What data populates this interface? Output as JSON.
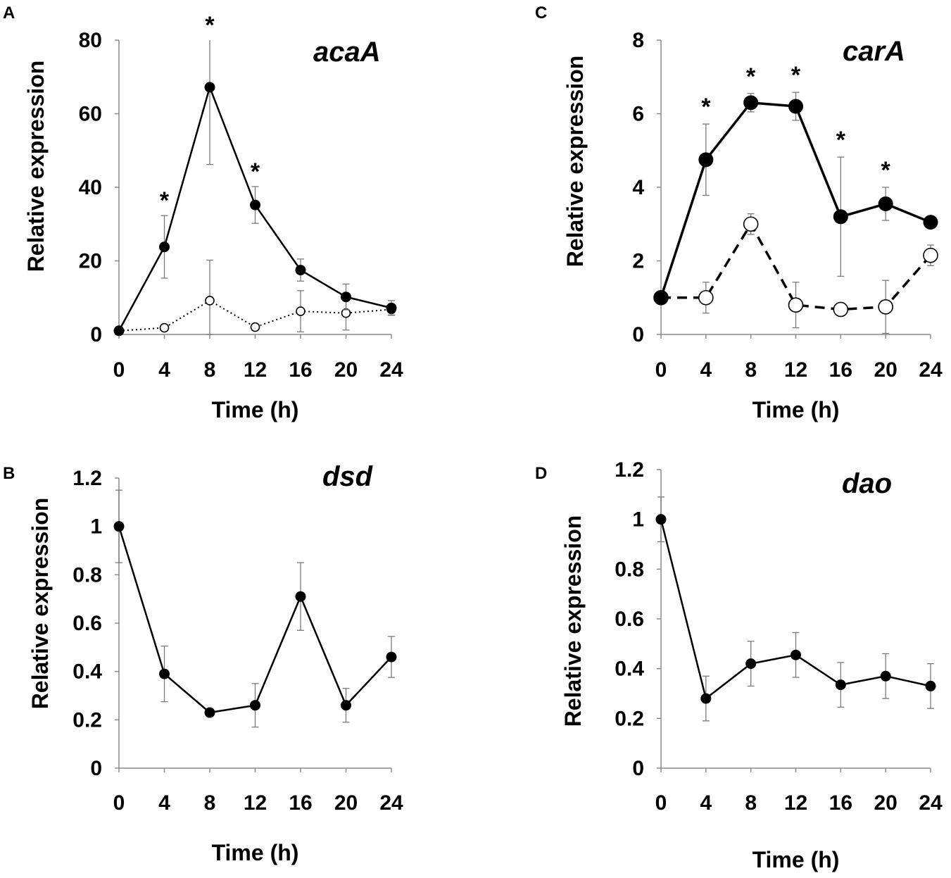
{
  "chart_data": [
    {
      "panel": "A",
      "type": "line",
      "title": "acaA",
      "xlabel": "Time (h)",
      "ylabel": "Relative expression",
      "x": [
        0,
        4,
        8,
        12,
        16,
        20,
        24
      ],
      "ylim": [
        0,
        80
      ],
      "yticks": [
        0,
        20,
        40,
        60,
        80
      ],
      "ytick_labels": [
        "0",
        "20",
        "40",
        "60",
        "80"
      ],
      "xtick_labels": [
        "0",
        "4",
        "8",
        "12",
        "16",
        "20",
        "24"
      ],
      "series": [
        {
          "name": "filled",
          "marker": "filled",
          "line": "solid",
          "values": [
            1,
            23.8,
            67.2,
            35.2,
            17.5,
            10.2,
            7.2
          ],
          "errors": [
            0,
            8.5,
            21,
            5,
            3,
            3.5,
            2
          ]
        },
        {
          "name": "open",
          "marker": "open",
          "line": "dotted",
          "values": [
            1,
            1.8,
            9.2,
            2,
            6.3,
            5.8,
            6.8
          ],
          "errors": [
            0,
            0.6,
            11,
            0.6,
            5.6,
            4.6,
            1.5
          ]
        }
      ],
      "asterisks": [
        4,
        8,
        12
      ]
    },
    {
      "panel": "B",
      "type": "line",
      "title": "dsd",
      "xlabel": "Time (h)",
      "ylabel": "Relative expression",
      "x": [
        0,
        4,
        8,
        12,
        16,
        20,
        24
      ],
      "ylim": [
        0,
        1.2
      ],
      "yticks": [
        0,
        0.2,
        0.4,
        0.6,
        0.8,
        1,
        1.2
      ],
      "ytick_labels": [
        "0",
        "0.2",
        "0.4",
        "0.6",
        "0.8",
        "1",
        "1.2"
      ],
      "xtick_labels": [
        "0",
        "4",
        "8",
        "12",
        "16",
        "20",
        "24"
      ],
      "series": [
        {
          "name": "filled",
          "marker": "filled",
          "line": "solid",
          "values": [
            1.0,
            0.39,
            0.23,
            0.26,
            0.71,
            0.26,
            0.46
          ],
          "errors": [
            0.15,
            0.115,
            0.01,
            0.09,
            0.14,
            0.07,
            0.085
          ]
        }
      ],
      "asterisks": []
    },
    {
      "panel": "C",
      "type": "line",
      "title": "carA",
      "xlabel": "Time (h)",
      "ylabel": "Relative expression",
      "x": [
        0,
        4,
        8,
        12,
        16,
        20,
        24
      ],
      "ylim": [
        0,
        8
      ],
      "yticks": [
        0,
        2,
        4,
        6,
        8
      ],
      "ytick_labels": [
        "0",
        "2",
        "4",
        "6",
        "8"
      ],
      "xtick_labels": [
        "0",
        "4",
        "8",
        "12",
        "16",
        "20",
        "24"
      ],
      "series": [
        {
          "name": "filled",
          "marker": "filled",
          "line": "solid",
          "values": [
            1,
            4.75,
            6.3,
            6.2,
            3.2,
            3.55,
            3.05
          ],
          "errors": [
            0,
            0.97,
            0.25,
            0.38,
            1.62,
            0.45,
            0.15
          ]
        },
        {
          "name": "open",
          "marker": "open",
          "line": "dashed",
          "values": [
            1,
            1.0,
            3.0,
            0.8,
            0.68,
            0.75,
            2.15
          ],
          "errors": [
            0,
            0.42,
            0.28,
            0.62,
            0.1,
            0.72,
            0.28
          ]
        }
      ],
      "asterisks": [
        4,
        8,
        12,
        16,
        20
      ]
    },
    {
      "panel": "D",
      "type": "line",
      "title": "dao",
      "xlabel": "Time (h)",
      "ylabel": "Relative expression",
      "x": [
        0,
        4,
        8,
        12,
        16,
        20,
        24
      ],
      "ylim": [
        0,
        1.2
      ],
      "yticks": [
        0,
        0.2,
        0.4,
        0.6,
        0.8,
        1,
        1.2
      ],
      "ytick_labels": [
        "0",
        "0.2",
        "0.4",
        "0.6",
        "0.8",
        "1",
        "1.2"
      ],
      "xtick_labels": [
        "0",
        "4",
        "8",
        "12",
        "16",
        "20",
        "24"
      ],
      "series": [
        {
          "name": "filled",
          "marker": "filled",
          "line": "solid",
          "values": [
            1.0,
            0.28,
            0.42,
            0.455,
            0.335,
            0.37,
            0.33
          ],
          "errors": [
            0.09,
            0.09,
            0.09,
            0.09,
            0.09,
            0.09,
            0.09
          ]
        }
      ],
      "asterisks": []
    }
  ]
}
